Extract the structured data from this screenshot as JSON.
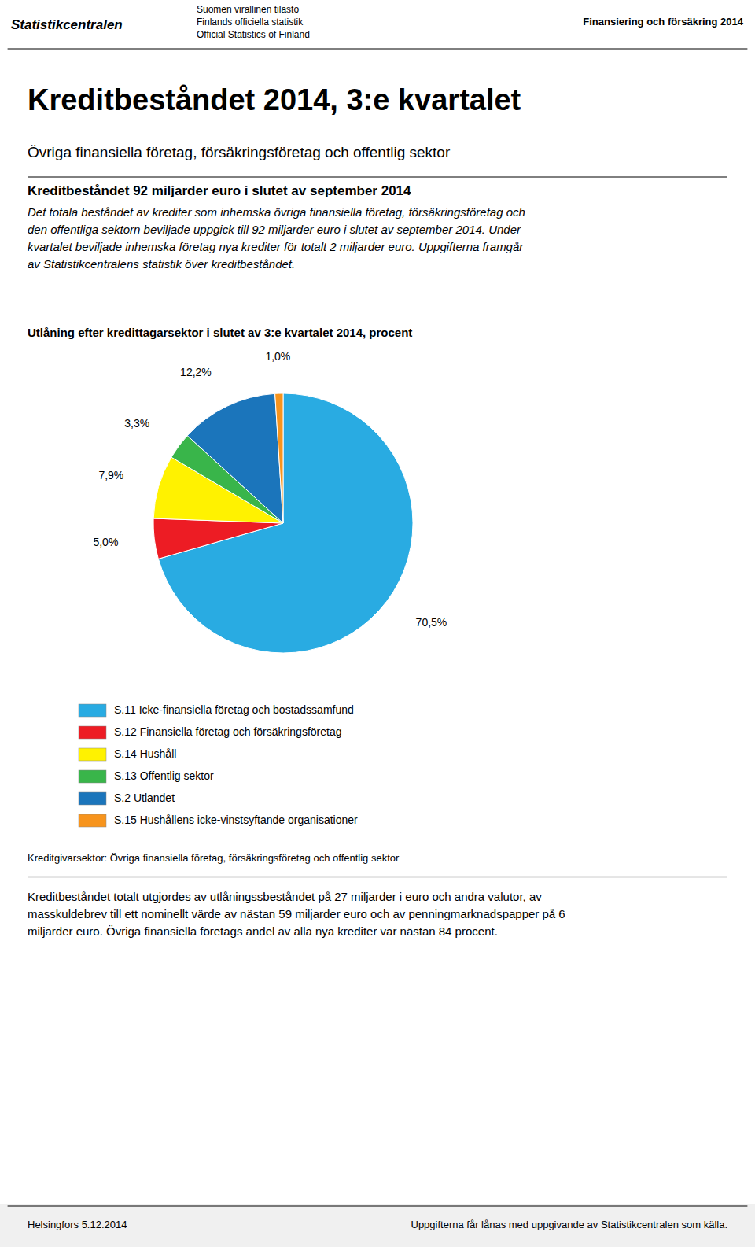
{
  "header": {
    "left": "Statistikcentralen",
    "center": [
      "Suomen virallinen tilasto",
      "Finlands officiella statistik",
      "Official Statistics of Finland"
    ],
    "right": "Finansiering och försäkring 2014"
  },
  "title": "Kreditbeståndet 2014, 3:e kvartalet",
  "subtitle": "Övriga finansiella företag, försäkringsföretag och offentlig sektor",
  "section_title": "Kreditbeståndet 92 miljarder euro i slutet av september 2014",
  "body_text": [
    "Det totala beståndet av krediter som inhemska övriga finansiella företag, försäkringsföretag och",
    "den offentliga sektorn beviljade uppgick till 92 miljarder euro i slutet av september 2014. Under",
    "kvartalet beviljade inhemska företag nya krediter för totalt 2 miljarder euro. Uppgifterna framgår",
    "av Statistikcentralens statistik över kreditbeståndet."
  ],
  "chart_data": {
    "type": "pie",
    "title": "Utlåning efter kredittagarsektor i slutet av 3:e kvartalet 2014, procent",
    "categories": [
      "S.11 Icke-finansiella företag och bostadssamfund",
      "S.12 Finansiella företag och försäkringsföretag",
      "S.14 Hushåll",
      "S.13 Offentlig sektor",
      "S.2 Utlandet",
      "S.15 Hushållens icke-vinstsyftande organisationer"
    ],
    "values": [
      70.5,
      5.0,
      7.9,
      3.3,
      12.2,
      1.0
    ],
    "value_labels": [
      "70,5%",
      "5,0%",
      "7,9%",
      "3,3%",
      "12,2%",
      "1,0%"
    ],
    "colors": [
      "#29ABE2",
      "#ED1C24",
      "#FFF200",
      "#39B54A",
      "#1B75BB",
      "#F7941D"
    ],
    "legend": "bottom"
  },
  "footnote": "Kreditgivarsektor: Övriga finansiella företag, försäkringsföretag och offentlig sektor",
  "body_text2": [
    "Kreditbeståndet totalt utgjordes av utlåningssbeståndet på 27 miljarder i euro och andra valutor, av",
    "masskuldebrev till ett nominellt värde av nästan 59 miljarder euro och av penningmarknadspapper på 6",
    "miljarder euro. Övriga finansiella företags andel av alla nya krediter var nästan 84 procent."
  ],
  "footer": {
    "date": "Helsingfors 5.12.2014",
    "note": "Uppgifterna får lånas med uppgivande av Statistikcentralen som källa."
  }
}
